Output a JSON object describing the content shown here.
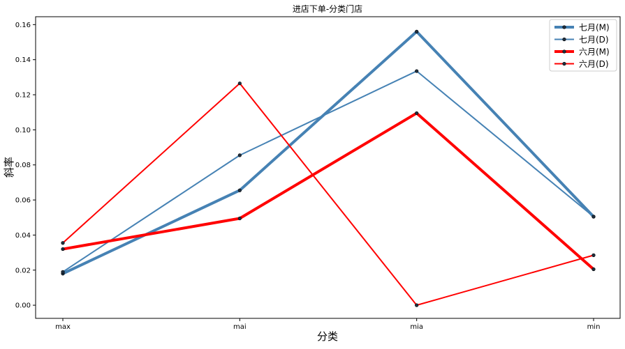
{
  "chart_data": {
    "type": "line",
    "title": "进店下单-分类门店",
    "xlabel": "分类",
    "ylabel": "斜率",
    "categories": [
      "max",
      "mai",
      "mia",
      "min"
    ],
    "ylim": [
      -0.0075,
      0.1645
    ],
    "yticks": [
      0.0,
      0.02,
      0.04,
      0.06,
      0.08,
      0.1,
      0.12,
      0.14,
      0.16
    ],
    "ytick_labels": [
      "0.00",
      "0.02",
      "0.04",
      "0.06",
      "0.08",
      "0.10",
      "0.12",
      "0.14",
      "0.16"
    ],
    "grid": false,
    "legend_position": "top-right",
    "series": [
      {
        "name": "七月(M)",
        "values": [
          0.018,
          0.0655,
          0.156,
          0.0505
        ],
        "color": "#4682b4",
        "weight": "thick"
      },
      {
        "name": "七月(D)",
        "values": [
          0.019,
          0.0855,
          0.1335,
          0.0505
        ],
        "color": "#4682b4",
        "weight": "thin"
      },
      {
        "name": "六月(M)",
        "values": [
          0.032,
          0.0495,
          0.1095,
          0.0205
        ],
        "color": "#ff0000",
        "weight": "thick"
      },
      {
        "name": "六月(D)",
        "values": [
          0.0355,
          0.1265,
          0.0,
          0.0285
        ],
        "color": "#ff0000",
        "weight": "thin"
      }
    ]
  }
}
